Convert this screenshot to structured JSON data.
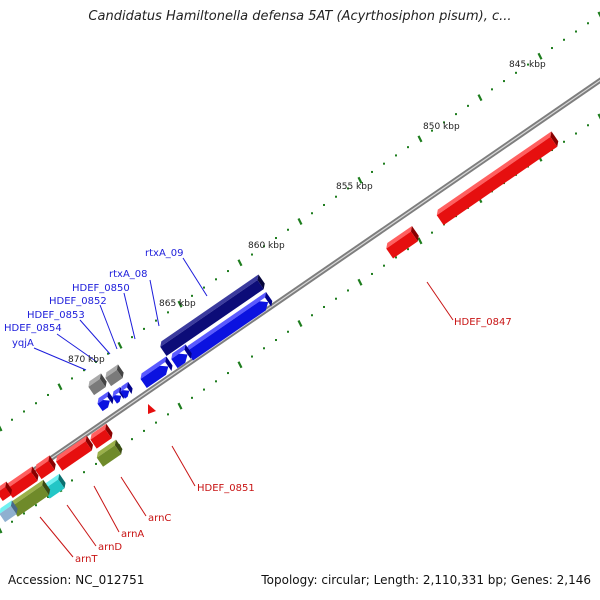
{
  "title": "Candidatus Hamiltonella defensa 5AT (Acyrthosiphon pisum), c...",
  "accession": "Accession: NC_012751",
  "topology": "Topology: circular; Length: 2,110,331 bp; Genes: 2,146",
  "scale_labels": [
    "845 kbp",
    "850 kbp",
    "855 kbp",
    "860 kbp",
    "865 kbp",
    "870 kbp"
  ],
  "colors": {
    "backbone": "#8a8a8a",
    "tick": "#1e7d1e",
    "forward_gene": "#0b12e0",
    "forward_gene_dark": "#0c0c78",
    "reverse_gene": "#e60f0f",
    "olive_gene": "#6f8a2a",
    "cyan_gene": "#23c6c6",
    "gray_gene": "#7a7a7a",
    "blue_label": "#1d1ddb",
    "red_label": "#c81414"
  },
  "gene_labels": {
    "rtxA_09": "rtxA_09",
    "rtxA_08": "rtxA_08",
    "HDEF_0850": "HDEF_0850",
    "HDEF_0852": "HDEF_0852",
    "HDEF_0853": "HDEF_0853",
    "HDEF_0854": "HDEF_0854",
    "yqjA": "yqjA",
    "HDEF_0847": "HDEF_0847",
    "HDEF_0851": "HDEF_0851",
    "arnC": "arnC",
    "arnA": "arnA",
    "arnD": "arnD",
    "arnT": "arnT"
  }
}
